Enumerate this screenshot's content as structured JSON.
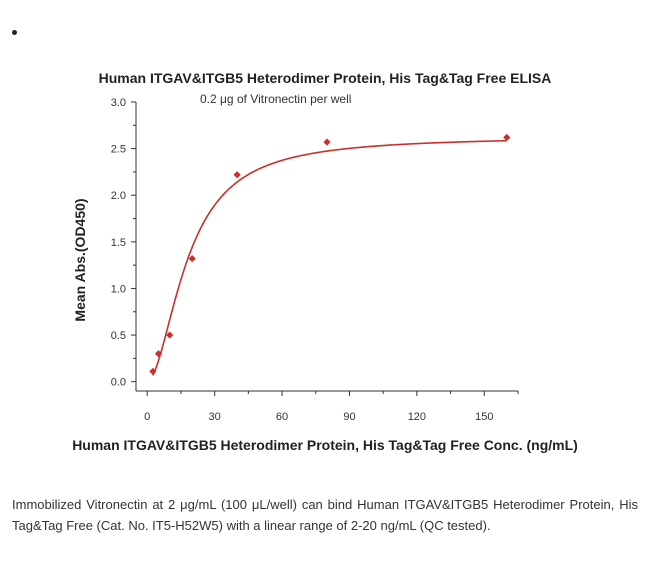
{
  "chart_data": {
    "type": "scatter",
    "title": "Human ITGAV&ITGB5 Heterodimer Protein, His Tag&Tag Free ELISA",
    "subtitle": "0.2 μg of Vitronectin per well",
    "xlabel": "Human ITGAV&ITGB5 Heterodimer Protein, His Tag&Tag Free Conc. (ng/mL)",
    "ylabel": "Mean Abs.(OD450)",
    "xlim": [
      -5,
      165
    ],
    "ylim": [
      -0.1,
      3.0
    ],
    "xticks": [
      "0",
      "30",
      "60",
      "90",
      "120",
      "150"
    ],
    "yticks": [
      "0.0",
      "0.5",
      "1.0",
      "1.5",
      "2.0",
      "2.5",
      "3.0"
    ],
    "grid": false,
    "series": [
      {
        "color": "#c9302c",
        "marker": "diamond",
        "points": [
          {
            "x": 2.5,
            "y": 0.11
          },
          {
            "x": 5,
            "y": 0.3
          },
          {
            "x": 10,
            "y": 0.5
          },
          {
            "x": 20,
            "y": 1.32
          },
          {
            "x": 40,
            "y": 2.22
          },
          {
            "x": 80,
            "y": 2.57
          },
          {
            "x": 160,
            "y": 2.62
          }
        ],
        "fit": {
          "model": "4PL",
          "bottom": 0.0,
          "top": 2.63,
          "ec50": 18.0,
          "hill": 1.85
        }
      }
    ]
  },
  "caption": "Immobilized Vitronectin at 2 μg/mL (100 μL/well) can bind Human ITGAV&ITGB5 Heterodimer Protein, His Tag&Tag Free (Cat. No. IT5-H52W5) with a linear range of 2-20 ng/mL (QC tested)."
}
